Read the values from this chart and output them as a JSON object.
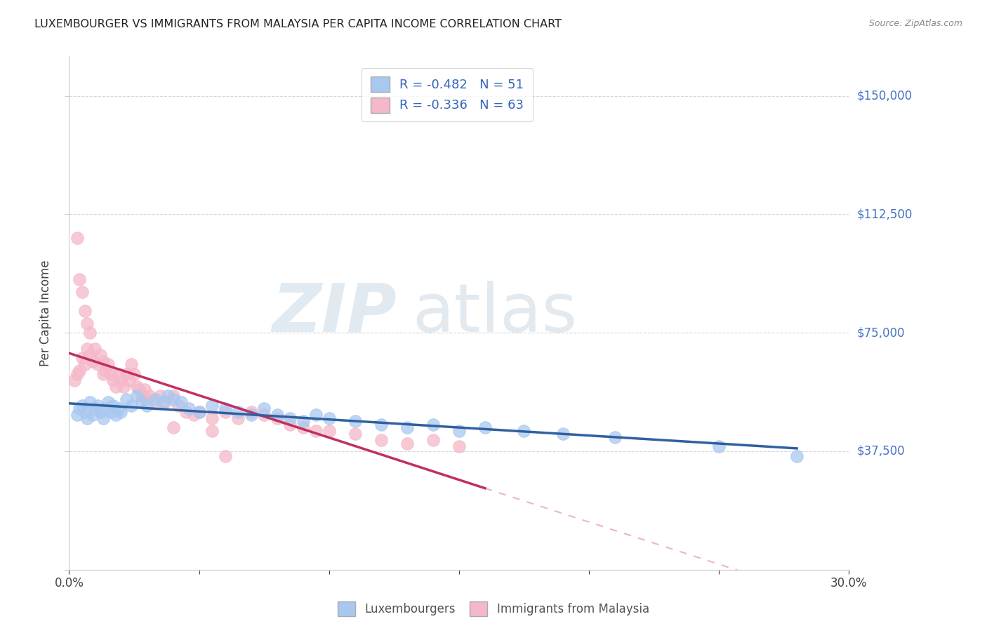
{
  "title": "LUXEMBOURGER VS IMMIGRANTS FROM MALAYSIA PER CAPITA INCOME CORRELATION CHART",
  "source": "Source: ZipAtlas.com",
  "ylabel": "Per Capita Income",
  "xlim": [
    0.0,
    0.3
  ],
  "ylim": [
    0,
    162500
  ],
  "yticks": [
    0,
    37500,
    75000,
    112500,
    150000
  ],
  "ytick_labels": [
    "",
    "$37,500",
    "$75,000",
    "$112,500",
    "$150,000"
  ],
  "xticks": [
    0.0,
    0.05,
    0.1,
    0.15,
    0.2,
    0.25,
    0.3
  ],
  "blue_color": "#A8C8F0",
  "pink_color": "#F5B8C8",
  "blue_line_color": "#3060A0",
  "pink_line_color": "#C03060",
  "blue_r": -0.482,
  "blue_n": 51,
  "pink_r": -0.336,
  "pink_n": 63,
  "watermark_zip": "ZIP",
  "watermark_atlas": "atlas",
  "legend_label_blue": "Luxembourgers",
  "legend_label_pink": "Immigrants from Malaysia",
  "blue_scatter_x": [
    0.003,
    0.004,
    0.005,
    0.006,
    0.007,
    0.008,
    0.009,
    0.01,
    0.011,
    0.012,
    0.013,
    0.014,
    0.015,
    0.016,
    0.017,
    0.018,
    0.019,
    0.02,
    0.022,
    0.024,
    0.026,
    0.028,
    0.03,
    0.033,
    0.036,
    0.038,
    0.04,
    0.043,
    0.046,
    0.05,
    0.055,
    0.06,
    0.065,
    0.07,
    0.075,
    0.08,
    0.085,
    0.09,
    0.095,
    0.1,
    0.11,
    0.12,
    0.13,
    0.14,
    0.15,
    0.16,
    0.175,
    0.19,
    0.21,
    0.25,
    0.28
  ],
  "blue_scatter_y": [
    49000,
    51000,
    52000,
    50000,
    48000,
    53000,
    49000,
    51000,
    52000,
    50000,
    48000,
    51000,
    53000,
    50000,
    52000,
    49000,
    51000,
    50000,
    54000,
    52000,
    55000,
    53000,
    52000,
    54000,
    53000,
    55000,
    54000,
    53000,
    51000,
    50000,
    52000,
    51000,
    50000,
    49000,
    51000,
    49000,
    48000,
    47000,
    49000,
    48000,
    47000,
    46000,
    45000,
    46000,
    44000,
    45000,
    44000,
    43000,
    42000,
    39000,
    36000
  ],
  "pink_scatter_x": [
    0.002,
    0.003,
    0.004,
    0.005,
    0.006,
    0.007,
    0.008,
    0.009,
    0.01,
    0.011,
    0.012,
    0.013,
    0.013,
    0.014,
    0.015,
    0.016,
    0.017,
    0.018,
    0.019,
    0.02,
    0.021,
    0.022,
    0.023,
    0.024,
    0.025,
    0.026,
    0.027,
    0.028,
    0.029,
    0.03,
    0.031,
    0.033,
    0.035,
    0.037,
    0.04,
    0.042,
    0.045,
    0.048,
    0.05,
    0.055,
    0.06,
    0.065,
    0.07,
    0.075,
    0.08,
    0.085,
    0.09,
    0.095,
    0.1,
    0.11,
    0.12,
    0.13,
    0.14,
    0.15,
    0.003,
    0.004,
    0.005,
    0.006,
    0.007,
    0.008,
    0.04,
    0.055,
    0.06
  ],
  "pink_scatter_y": [
    60000,
    62000,
    63000,
    67000,
    65000,
    70000,
    68000,
    66000,
    70000,
    65000,
    68000,
    66000,
    62000,
    63000,
    65000,
    62000,
    60000,
    58000,
    62000,
    60000,
    58000,
    62000,
    60000,
    65000,
    62000,
    58000,
    57000,
    55000,
    57000,
    54000,
    55000,
    53000,
    55000,
    53000,
    55000,
    52000,
    50000,
    49000,
    50000,
    48000,
    50000,
    48000,
    50000,
    49000,
    48000,
    46000,
    45000,
    44000,
    44000,
    43000,
    41000,
    40000,
    41000,
    39000,
    105000,
    92000,
    88000,
    82000,
    78000,
    75000,
    45000,
    44000,
    36000
  ],
  "pink_line_x_end": 0.16,
  "pink_line_dash_end": 0.3
}
